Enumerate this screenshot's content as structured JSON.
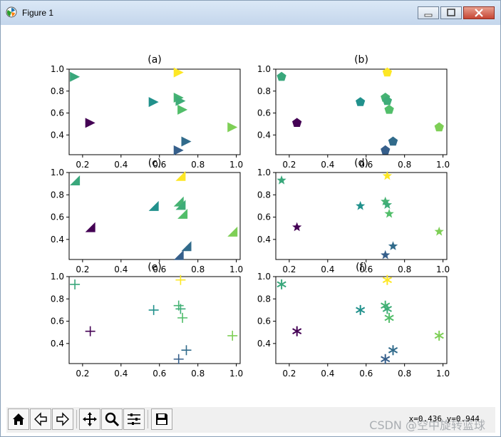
{
  "window": {
    "title": "Figure 1"
  },
  "toolbar": {
    "buttons": [
      "home-icon",
      "back-icon",
      "forward-icon",
      "pan-icon",
      "zoom-icon",
      "configure-subplots-icon",
      "save-icon"
    ],
    "coords": "x=0.436 y=0.944",
    "watermark": "CSDN @空中旋转篮球"
  },
  "colors": {
    "viridis_low": "#440154",
    "viridis_high": "#fde725"
  },
  "chart_data": [
    {
      "type": "scatter",
      "title": "(a)",
      "marker": "triangle-right",
      "x": [
        0.24,
        0.16,
        0.57,
        0.7,
        0.71,
        0.7,
        0.72,
        0.74,
        0.7,
        0.98
      ],
      "y": [
        0.51,
        0.93,
        0.7,
        0.74,
        0.71,
        0.97,
        0.63,
        0.34,
        0.26,
        0.47
      ],
      "c": [
        0.0,
        0.6,
        0.5,
        0.65,
        0.62,
        1.0,
        0.7,
        0.35,
        0.3,
        0.8
      ],
      "xlim": [
        0.13,
        1.02
      ],
      "ylim": [
        0.22,
        1.0
      ],
      "xticks": [
        "0.2",
        "0.4",
        "0.6",
        "0.8",
        "1.0"
      ],
      "yticks": [
        "0.4",
        "0.6",
        "0.8",
        "1.0"
      ]
    },
    {
      "type": "scatter",
      "title": "(b)",
      "marker": "pentagon",
      "x": [
        0.24,
        0.16,
        0.57,
        0.7,
        0.71,
        0.71,
        0.72,
        0.74,
        0.7,
        0.98
      ],
      "y": [
        0.51,
        0.93,
        0.7,
        0.74,
        0.71,
        0.97,
        0.63,
        0.34,
        0.26,
        0.47
      ],
      "c": [
        0.0,
        0.6,
        0.5,
        0.65,
        0.62,
        1.0,
        0.7,
        0.35,
        0.3,
        0.8
      ],
      "xlim": [
        0.13,
        1.02
      ],
      "ylim": [
        0.22,
        1.0
      ],
      "xticks": [
        "0.2",
        "0.4",
        "0.6",
        "0.8",
        "1.0"
      ],
      "yticks": [
        "0.4",
        "0.6",
        "0.8",
        "1.0"
      ]
    },
    {
      "type": "scatter",
      "title": "(c)",
      "marker": "wedge",
      "x": [
        0.24,
        0.16,
        0.57,
        0.7,
        0.71,
        0.71,
        0.72,
        0.74,
        0.7,
        0.98
      ],
      "y": [
        0.51,
        0.93,
        0.7,
        0.74,
        0.71,
        0.97,
        0.63,
        0.34,
        0.26,
        0.47
      ],
      "c": [
        0.0,
        0.6,
        0.5,
        0.65,
        0.62,
        1.0,
        0.7,
        0.35,
        0.3,
        0.8
      ],
      "xlim": [
        0.13,
        1.02
      ],
      "ylim": [
        0.22,
        1.0
      ],
      "xticks": [
        "0.2",
        "0.4",
        "0.6",
        "0.8",
        "1.0"
      ],
      "yticks": [
        "0.4",
        "0.6",
        "0.8",
        "1.0"
      ]
    },
    {
      "type": "scatter",
      "title": "(d)",
      "marker": "star",
      "x": [
        0.24,
        0.16,
        0.57,
        0.7,
        0.71,
        0.71,
        0.72,
        0.74,
        0.7,
        0.98
      ],
      "y": [
        0.51,
        0.93,
        0.7,
        0.74,
        0.71,
        0.97,
        0.63,
        0.34,
        0.26,
        0.47
      ],
      "c": [
        0.0,
        0.6,
        0.5,
        0.65,
        0.62,
        1.0,
        0.7,
        0.35,
        0.3,
        0.8
      ],
      "xlim": [
        0.13,
        1.02
      ],
      "ylim": [
        0.22,
        1.0
      ],
      "xticks": [
        "0.2",
        "0.4",
        "0.6",
        "0.8",
        "1.0"
      ],
      "yticks": [
        "0.4",
        "0.6",
        "0.8",
        "1.0"
      ]
    },
    {
      "type": "scatter",
      "title": "(e)",
      "marker": "plus",
      "x": [
        0.24,
        0.16,
        0.57,
        0.7,
        0.71,
        0.71,
        0.72,
        0.74,
        0.7,
        0.98
      ],
      "y": [
        0.51,
        0.93,
        0.7,
        0.74,
        0.71,
        0.97,
        0.63,
        0.34,
        0.26,
        0.47
      ],
      "c": [
        0.0,
        0.6,
        0.5,
        0.65,
        0.62,
        1.0,
        0.7,
        0.35,
        0.3,
        0.8
      ],
      "xlim": [
        0.13,
        1.02
      ],
      "ylim": [
        0.22,
        1.0
      ],
      "xticks": [
        "0.2",
        "0.4",
        "0.6",
        "0.8",
        "1.0"
      ],
      "yticks": [
        "0.4",
        "0.6",
        "0.8",
        "1.0"
      ]
    },
    {
      "type": "scatter",
      "title": "(f)",
      "marker": "asterisk",
      "x": [
        0.24,
        0.16,
        0.57,
        0.7,
        0.71,
        0.71,
        0.72,
        0.74,
        0.7,
        0.98
      ],
      "y": [
        0.51,
        0.93,
        0.7,
        0.74,
        0.71,
        0.97,
        0.63,
        0.34,
        0.26,
        0.47
      ],
      "c": [
        0.0,
        0.6,
        0.5,
        0.65,
        0.62,
        1.0,
        0.7,
        0.35,
        0.3,
        0.8
      ],
      "xlim": [
        0.13,
        1.02
      ],
      "ylim": [
        0.22,
        1.0
      ],
      "xticks": [
        "0.2",
        "0.4",
        "0.6",
        "0.8",
        "1.0"
      ],
      "yticks": [
        "0.4",
        "0.6",
        "0.8",
        "1.0"
      ]
    }
  ]
}
